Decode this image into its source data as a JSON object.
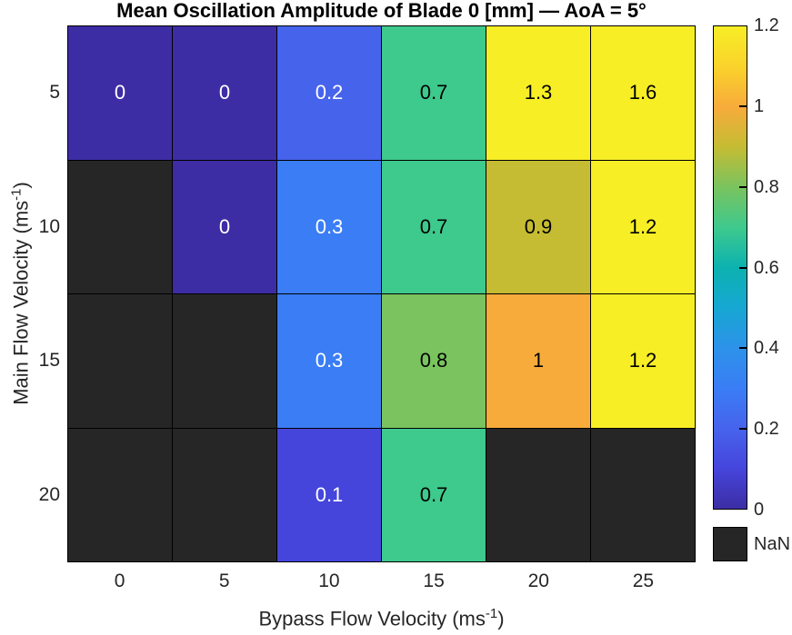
{
  "figure": {
    "title": "Mean Oscillation Amplitude of Blade 0 [mm] — AoA = 5°"
  },
  "x_axis": {
    "label_text": "Bypass Flow Velocity (ms",
    "label_sup": "-1",
    "label_close": ")",
    "tick_labels": [
      "0",
      "5",
      "10",
      "15",
      "20",
      "25"
    ]
  },
  "y_axis": {
    "label_text": "Main Flow Velocity (ms",
    "label_sup": "-1",
    "label_close": ")",
    "tick_labels": [
      "5",
      "10",
      "15",
      "20"
    ]
  },
  "colorbar": {
    "tick_labels": [
      "0",
      "0.2",
      "0.4",
      "0.6",
      "0.8",
      "1",
      "1.2"
    ],
    "tick_values": [
      0,
      0.2,
      0.4,
      0.6,
      0.8,
      1,
      1.2
    ],
    "limits": [
      0,
      1.2
    ],
    "gradient_stops": [
      {
        "at": 0.0,
        "color": "#3C2DA4"
      },
      {
        "at": 0.083,
        "color": "#4545DC"
      },
      {
        "at": 0.167,
        "color": "#4663EC"
      },
      {
        "at": 0.25,
        "color": "#3A7DF5"
      },
      {
        "at": 0.333,
        "color": "#2D92E9"
      },
      {
        "at": 0.417,
        "color": "#16A7D2"
      },
      {
        "at": 0.5,
        "color": "#0CB2B0"
      },
      {
        "at": 0.583,
        "color": "#3EC98D"
      },
      {
        "at": 0.667,
        "color": "#7AC35E"
      },
      {
        "at": 0.75,
        "color": "#C5BC33"
      },
      {
        "at": 0.833,
        "color": "#F7AB3B"
      },
      {
        "at": 0.917,
        "color": "#FAD32B"
      },
      {
        "at": 1.0,
        "color": "#F7EE26"
      }
    ],
    "nan_label": "NaN",
    "nan_color": "#262626"
  },
  "chart_data": {
    "type": "heatmap",
    "title": "Mean Oscillation Amplitude of Blade 0 [mm] — AoA = 5°",
    "xlabel": "Bypass Flow Velocity (ms^-1)",
    "ylabel": "Main Flow Velocity (ms^-1)",
    "x_categories": [
      0,
      5,
      10,
      15,
      20,
      25
    ],
    "y_categories": [
      5,
      10,
      15,
      20
    ],
    "values": [
      [
        0,
        0,
        0.2,
        0.7,
        1.3,
        1.6
      ],
      [
        null,
        0,
        0.3,
        0.7,
        0.9,
        1.2
      ],
      [
        null,
        null,
        0.3,
        0.8,
        1,
        1.2
      ],
      [
        null,
        null,
        0.1,
        0.7,
        null,
        null
      ]
    ],
    "cell_labels": [
      [
        "0",
        "0",
        "0.2",
        "0.7",
        "1.3",
        "1.6"
      ],
      [
        "",
        "0",
        "0.3",
        "0.7",
        "0.9",
        "1.2"
      ],
      [
        "",
        "",
        "0.3",
        "0.8",
        "1",
        "1.2"
      ],
      [
        "",
        "",
        "0.1",
        "0.7",
        "",
        ""
      ]
    ],
    "cell_colors": [
      [
        "#3C2DA4",
        "#3C2DA4",
        "#4663EC",
        "#3EC98D",
        "#F7EE26",
        "#F7EE26"
      ],
      [
        null,
        "#3C2DA4",
        "#3A7DF5",
        "#3EC98D",
        "#C5BC33",
        "#F7EE26"
      ],
      [
        null,
        null,
        "#3A7DF5",
        "#7AC35E",
        "#F7AB3B",
        "#F7EE26"
      ],
      [
        null,
        null,
        "#4545DC",
        "#3EC98D",
        null,
        null
      ]
    ],
    "color_limits": [
      0,
      1.2
    ],
    "nan_color": "#262626",
    "grid_line_color": "#000000",
    "legend_position": "right-colorbar",
    "grid": "on"
  }
}
